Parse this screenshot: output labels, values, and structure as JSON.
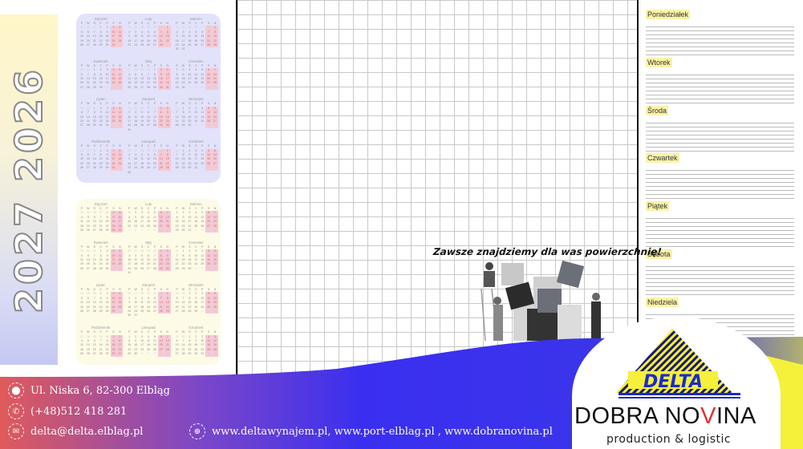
{
  "years_label": "2027 2026",
  "calendars": [
    {
      "year": 2026,
      "color": "#e2e2fb"
    },
    {
      "year": 2027,
      "color": "#fdfbe6"
    }
  ],
  "weekday_headers": [
    "P",
    "W",
    "Ś",
    "C",
    "P",
    "S",
    "N"
  ],
  "months": [
    "Styczeń",
    "Luty",
    "Marzec",
    "Kwiecień",
    "Maj",
    "Czerwiec",
    "Lipiec",
    "Sierpień",
    "Wrzesień",
    "Październik",
    "Listopad",
    "Grudzień"
  ],
  "weekdays": [
    "Poniedziałek",
    "Wtorek",
    "Środa",
    "Czwartek",
    "Piątek",
    "Sobota",
    "Niedziela"
  ],
  "slogan": "Zawsze znajdziemy dla was powierzchnię!",
  "contact": {
    "address": "Ul. Niska 6, 82-300 Elbląg",
    "phone": "(+48)512 418 281",
    "email": "delta@delta.elblag.pl",
    "websites": "www.deltawynajem.pl, www.port-elblag.pl , www.dobranovina.pl"
  },
  "logo": {
    "mark": "DELTA",
    "brand_a": "DOBRA NO",
    "brand_v": "V",
    "brand_b": "INA",
    "tagline": "production & logistic"
  },
  "colors": {
    "band_blue": "#3a2ff0",
    "band_red": "#e05a5a",
    "accent_yellow": "#f5f03a",
    "highlight": "#fbf3a8"
  }
}
